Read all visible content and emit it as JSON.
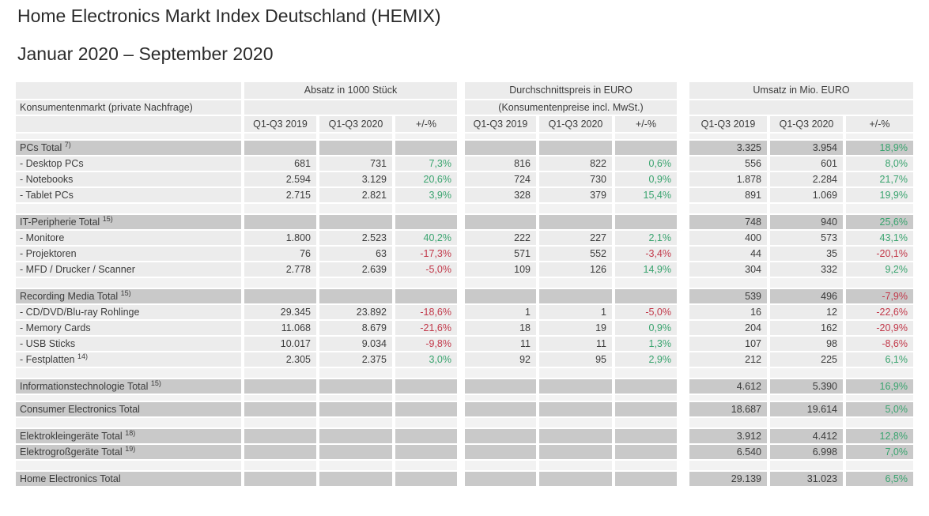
{
  "title": "Home Electronics Markt Index Deutschland (HEMIX)",
  "subtitle": "Januar 2020 – September 2020",
  "table": {
    "label_header": "Konsumentenmarkt (private Nachfrage)",
    "groups": [
      {
        "title": "Absatz in 1000 Stück",
        "subtitle": ""
      },
      {
        "title": "Durchschnittspreis in EURO",
        "subtitle": "(Konsumentenpreise incl. MwSt.)"
      },
      {
        "title": "Umsatz in Mio. EURO",
        "subtitle": ""
      }
    ],
    "sub_headers": [
      "Q1-Q3 2019",
      "Q1-Q3 2020",
      "+/-%"
    ],
    "colors": {
      "positive": "#3aa46f",
      "negative": "#c2394a"
    },
    "rows": [
      {
        "type": "spacer-thin"
      },
      {
        "type": "total",
        "label": "PCs Total",
        "sup": "7)",
        "cells": [
          "",
          "",
          "",
          "",
          "",
          "",
          "3.325",
          "3.954",
          "18,9%"
        ]
      },
      {
        "type": "item",
        "label": "- Desktop PCs",
        "cells": [
          "681",
          "731",
          "7,3%",
          "816",
          "822",
          "0,6%",
          "556",
          "601",
          "8,0%"
        ]
      },
      {
        "type": "item",
        "label": "- Notebooks",
        "cells": [
          "2.594",
          "3.129",
          "20,6%",
          "724",
          "730",
          "0,9%",
          "1.878",
          "2.284",
          "21,7%"
        ]
      },
      {
        "type": "item",
        "label": "- Tablet PCs",
        "cells": [
          "2.715",
          "2.821",
          "3,9%",
          "328",
          "379",
          "15,4%",
          "891",
          "1.069",
          "19,9%"
        ]
      },
      {
        "type": "spacer"
      },
      {
        "type": "total",
        "label": "IT-Peripherie Total",
        "sup": "15)",
        "cells": [
          "",
          "",
          "",
          "",
          "",
          "",
          "748",
          "940",
          "25,6%"
        ]
      },
      {
        "type": "item",
        "label": "- Monitore",
        "cells": [
          "1.800",
          "2.523",
          "40,2%",
          "222",
          "227",
          "2,1%",
          "400",
          "573",
          "43,1%"
        ]
      },
      {
        "type": "item",
        "label": "- Projektoren",
        "cells": [
          "76",
          "63",
          "-17,3%",
          "571",
          "552",
          "-3,4%",
          "44",
          "35",
          "-20,1%"
        ]
      },
      {
        "type": "item",
        "label": "- MFD / Drucker / Scanner",
        "cells": [
          "2.778",
          "2.639",
          "-5,0%",
          "109",
          "126",
          "14,9%",
          "304",
          "332",
          "9,2%"
        ]
      },
      {
        "type": "spacer"
      },
      {
        "type": "total",
        "label": "Recording Media Total",
        "sup": "15)",
        "cells": [
          "",
          "",
          "",
          "",
          "",
          "",
          "539",
          "496",
          "-7,9%"
        ]
      },
      {
        "type": "item",
        "label": "- CD/DVD/Blu-ray Rohlinge",
        "cells": [
          "29.345",
          "23.892",
          "-18,6%",
          "1",
          "1",
          "-5,0%",
          "16",
          "12",
          "-22,6%"
        ]
      },
      {
        "type": "item",
        "label": "- Memory Cards",
        "cells": [
          "11.068",
          "8.679",
          "-21,6%",
          "18",
          "19",
          "0,9%",
          "204",
          "162",
          "-20,9%"
        ]
      },
      {
        "type": "item",
        "label": "- USB Sticks",
        "cells": [
          "10.017",
          "9.034",
          "-9,8%",
          "11",
          "11",
          "1,3%",
          "107",
          "98",
          "-8,6%"
        ]
      },
      {
        "type": "item",
        "label": "- Festplatten",
        "sup": "14)",
        "cells": [
          "2.305",
          "2.375",
          "3,0%",
          "92",
          "95",
          "2,9%",
          "212",
          "225",
          "6,1%"
        ]
      },
      {
        "type": "spacer"
      },
      {
        "type": "total",
        "label": "Informationstechnologie Total",
        "sup": "15)",
        "cells": [
          "",
          "",
          "",
          "",
          "",
          "",
          "4.612",
          "5.390",
          "16,9%"
        ]
      },
      {
        "type": "spacer-thin"
      },
      {
        "type": "total",
        "label": "Consumer Electronics Total",
        "cells": [
          "",
          "",
          "",
          "",
          "",
          "",
          "18.687",
          "19.614",
          "5,0%"
        ]
      },
      {
        "type": "spacer"
      },
      {
        "type": "total",
        "label": "Elektrokleingeräte Total",
        "sup": "18)",
        "cells": [
          "",
          "",
          "",
          "",
          "",
          "",
          "3.912",
          "4.412",
          "12,8%"
        ]
      },
      {
        "type": "total",
        "label": "Elektrogroßgeräte Total",
        "sup": "19)",
        "cells": [
          "",
          "",
          "",
          "",
          "",
          "",
          "6.540",
          "6.998",
          "7,0%"
        ]
      },
      {
        "type": "spacer"
      },
      {
        "type": "total",
        "label": "Home Electronics Total",
        "cells": [
          "",
          "",
          "",
          "",
          "",
          "",
          "29.139",
          "31.023",
          "6,5%"
        ]
      }
    ]
  }
}
